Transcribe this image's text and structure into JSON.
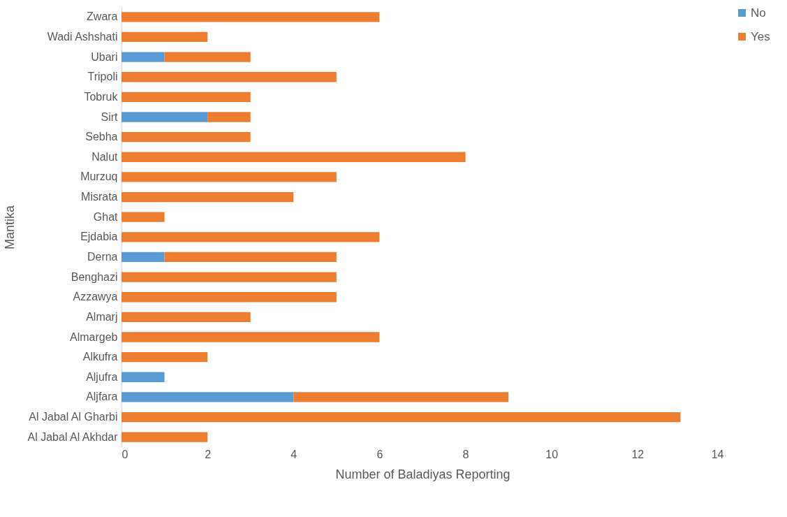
{
  "chart_data": {
    "type": "bar",
    "orientation": "horizontal",
    "stacked": true,
    "xlabel": "Number of Baladiyas Reporting",
    "ylabel": "Mantika",
    "categories": [
      "Zwara",
      "Wadi Ashshati",
      "Ubari",
      "Tripoli",
      "Tobruk",
      "Sirt",
      "Sebha",
      "Nalut",
      "Murzuq",
      "Misrata",
      "Ghat",
      "Ejdabia",
      "Derna",
      "Benghazi",
      "Azzawya",
      "Almarj",
      "Almargeb",
      "Alkufra",
      "Aljufra",
      "Aljfara",
      "Al Jabal Al Gharbi",
      "Al Jabal Al Akhdar"
    ],
    "series": [
      {
        "name": "No",
        "color": "#5b9bd5",
        "values": [
          null,
          null,
          1,
          null,
          null,
          2,
          null,
          null,
          null,
          null,
          null,
          null,
          1,
          null,
          null,
          null,
          null,
          null,
          1,
          4,
          null,
          null
        ]
      },
      {
        "name": "Yes",
        "color": "#ed7d31",
        "values": [
          6,
          2,
          2,
          5,
          3,
          1,
          3,
          8,
          5,
          4,
          1,
          6,
          4,
          5,
          5,
          3,
          6,
          2,
          null,
          5,
          13,
          2
        ]
      }
    ],
    "xlim": [
      0,
      14
    ],
    "xticks": [
      0,
      2,
      4,
      6,
      8,
      10,
      12,
      14
    ],
    "grid": false,
    "legend": "right"
  }
}
